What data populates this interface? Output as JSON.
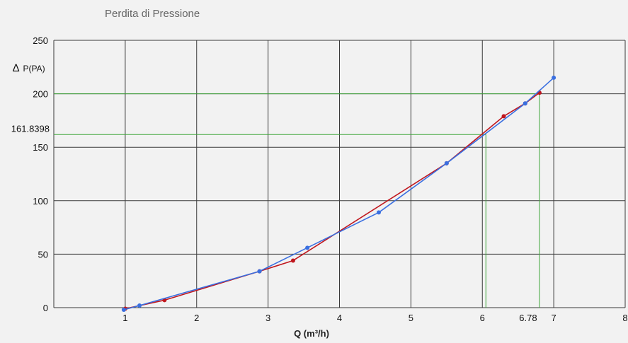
{
  "chart_data": {
    "type": "line",
    "title": "Perdita di Pressione",
    "xlabel": "Q (m³/h)",
    "ylabel_symbol": "∆",
    "ylabel": "P(PA)",
    "xlim": [
      0,
      8
    ],
    "ylim": [
      0,
      250
    ],
    "x_ticks": [
      1,
      2,
      3,
      4,
      5,
      6,
      7,
      8
    ],
    "y_ticks": [
      0,
      50,
      100,
      150,
      200,
      250
    ],
    "grid": true,
    "series": [
      {
        "color": "#c0171e",
        "points": [
          [
            1.0,
            -1
          ],
          [
            1.55,
            7
          ],
          [
            2.88,
            34
          ],
          [
            3.35,
            44
          ],
          [
            5.5,
            135
          ],
          [
            6.3,
            179
          ],
          [
            6.6,
            191
          ],
          [
            6.8,
            201
          ]
        ]
      },
      {
        "color": "#3a6fe0",
        "points": [
          [
            0.98,
            -2
          ],
          [
            1.2,
            2
          ],
          [
            2.88,
            34
          ],
          [
            3.55,
            56
          ],
          [
            4.55,
            89
          ],
          [
            5.5,
            135
          ],
          [
            6.6,
            191
          ],
          [
            7.0,
            215
          ]
        ]
      }
    ],
    "reference_lines": [
      {
        "x": 6.05,
        "y": 161.8398,
        "color": "#3fa63a",
        "y_label": "161.8398",
        "x_label": ""
      },
      {
        "x": 6.8,
        "y": 200,
        "color": "#3fa63a",
        "y_label": "",
        "x_label": "6.78"
      }
    ]
  }
}
